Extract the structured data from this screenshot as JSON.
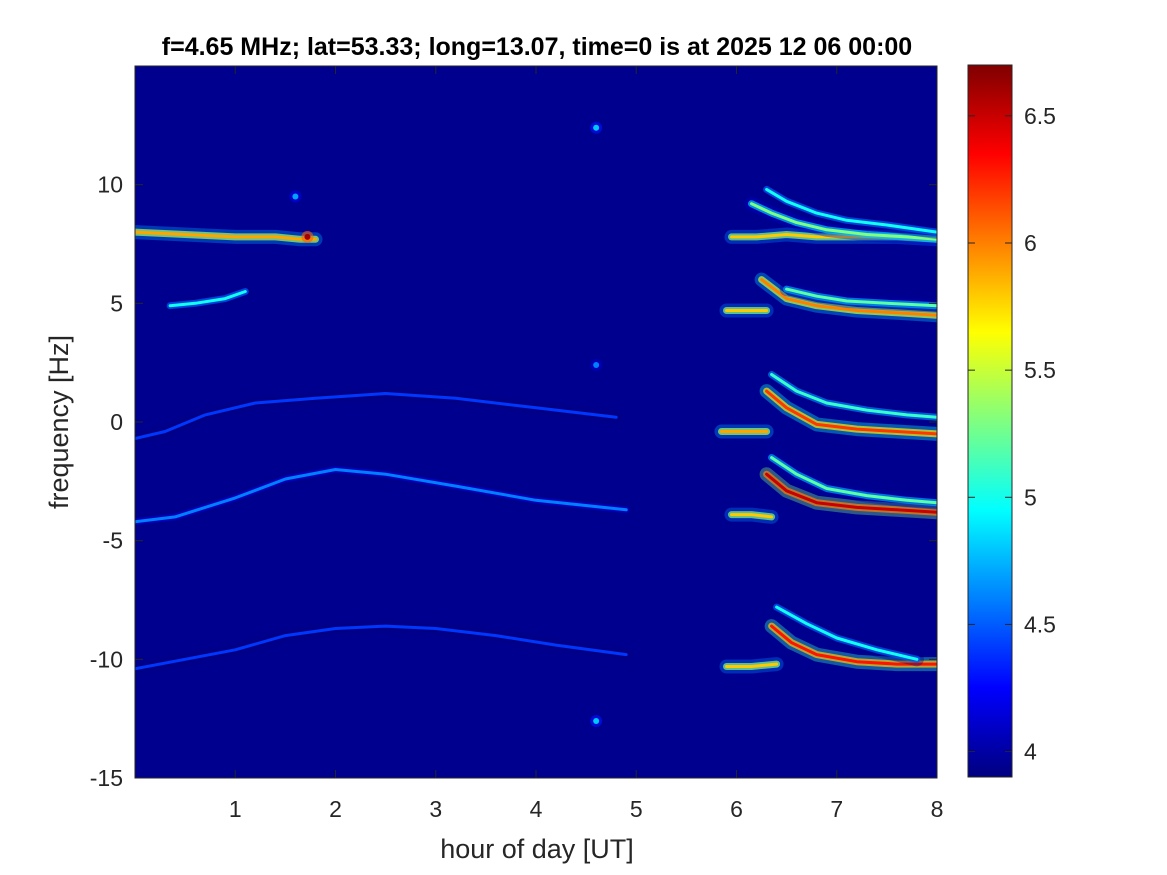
{
  "chart_data": {
    "type": "heatmap",
    "title": "f=4.65 MHz;  lat=53.33; long=13.07, time=0 is at 2025 12 06 00:00",
    "xlabel": "hour of day [UT]",
    "ylabel": "frequency [Hz]",
    "xlim": [
      0,
      8
    ],
    "ylim": [
      -15,
      15
    ],
    "x_ticks": [
      "1",
      "2",
      "3",
      "4",
      "5",
      "6",
      "7",
      "8"
    ],
    "y_ticks": [
      "-15",
      "-10",
      "-5",
      "0",
      "5",
      "10"
    ],
    "colormap": "jet",
    "colorbar": {
      "range": [
        3.9,
        6.7
      ],
      "ticks": [
        "4",
        "4.5",
        "5",
        "5.5",
        "6",
        "6.5"
      ]
    },
    "background_color": "#00008f",
    "traces": [
      {
        "x": [
          0.0,
          0.5,
          1.0,
          1.4,
          1.65,
          1.8
        ],
        "y": [
          8.0,
          7.9,
          7.8,
          7.8,
          7.7,
          7.7
        ],
        "level": 5.9
      },
      {
        "x": [
          0.35,
          0.6,
          0.9,
          1.1
        ],
        "y": [
          4.9,
          5.0,
          5.2,
          5.5
        ],
        "level": 5.0
      },
      {
        "x": [
          0.0,
          0.3,
          0.7,
          1.2,
          1.8,
          2.5,
          3.2,
          4.0,
          4.8
        ],
        "y": [
          -0.7,
          -0.4,
          0.3,
          0.8,
          1.0,
          1.2,
          1.0,
          0.6,
          0.2
        ],
        "level": 4.4
      },
      {
        "x": [
          0.0,
          0.4,
          1.0,
          1.5,
          2.0,
          2.5,
          3.2,
          4.0,
          4.9
        ],
        "y": [
          -4.2,
          -4.0,
          -3.2,
          -2.4,
          -2.0,
          -2.2,
          -2.7,
          -3.3,
          -3.7
        ],
        "level": 4.6
      },
      {
        "x": [
          0.0,
          0.5,
          1.0,
          1.5,
          2.0,
          2.5,
          3.0,
          3.6,
          4.2,
          4.9
        ],
        "y": [
          -10.4,
          -10.0,
          -9.6,
          -9.0,
          -8.7,
          -8.6,
          -8.7,
          -9.0,
          -9.4,
          -9.8
        ],
        "level": 4.4
      },
      {
        "x": [
          5.95,
          6.2,
          6.5,
          6.8,
          7.2,
          7.6,
          8.0
        ],
        "y": [
          7.8,
          7.8,
          7.9,
          7.8,
          7.8,
          7.8,
          7.7
        ],
        "level": 5.8
      },
      {
        "x": [
          6.15,
          6.35,
          6.6,
          6.9,
          7.3,
          7.7,
          8.0
        ],
        "y": [
          9.2,
          8.8,
          8.4,
          8.1,
          7.9,
          7.8,
          7.7
        ],
        "level": 5.3
      },
      {
        "x": [
          6.3,
          6.5,
          6.8,
          7.1,
          7.5,
          8.0
        ],
        "y": [
          9.8,
          9.3,
          8.8,
          8.5,
          8.3,
          8.0
        ],
        "level": 5.0
      },
      {
        "x": [
          5.9,
          6.1,
          6.3
        ],
        "y": [
          4.7,
          4.7,
          4.7
        ],
        "level": 5.8
      },
      {
        "x": [
          6.25,
          6.5,
          6.8,
          7.2,
          7.6,
          8.0
        ],
        "y": [
          6.0,
          5.2,
          4.9,
          4.7,
          4.6,
          4.5
        ],
        "level": 6.0
      },
      {
        "x": [
          6.5,
          6.8,
          7.1,
          7.5,
          8.0
        ],
        "y": [
          5.6,
          5.3,
          5.1,
          5.0,
          4.9
        ],
        "level": 5.2
      },
      {
        "x": [
          5.85,
          6.05,
          6.3
        ],
        "y": [
          -0.4,
          -0.4,
          -0.4
        ],
        "level": 5.9
      },
      {
        "x": [
          6.3,
          6.5,
          6.8,
          7.2,
          7.6,
          8.0
        ],
        "y": [
          1.3,
          0.6,
          -0.1,
          -0.3,
          -0.4,
          -0.5
        ],
        "level": 6.2
      },
      {
        "x": [
          6.35,
          6.6,
          6.9,
          7.3,
          7.7,
          8.0
        ],
        "y": [
          2.0,
          1.3,
          0.8,
          0.5,
          0.3,
          0.2
        ],
        "level": 5.1
      },
      {
        "x": [
          5.95,
          6.15,
          6.35
        ],
        "y": [
          -3.9,
          -3.9,
          -4.0
        ],
        "level": 5.8
      },
      {
        "x": [
          6.3,
          6.5,
          6.8,
          7.2,
          7.6,
          8.0
        ],
        "y": [
          -2.2,
          -2.9,
          -3.4,
          -3.6,
          -3.7,
          -3.8
        ],
        "level": 6.5
      },
      {
        "x": [
          6.35,
          6.6,
          6.9,
          7.3,
          7.7,
          8.0
        ],
        "y": [
          -1.5,
          -2.2,
          -2.8,
          -3.1,
          -3.3,
          -3.4
        ],
        "level": 5.2
      },
      {
        "x": [
          5.9,
          6.15,
          6.4
        ],
        "y": [
          -10.3,
          -10.3,
          -10.2
        ],
        "level": 5.8
      },
      {
        "x": [
          6.35,
          6.55,
          6.8,
          7.2,
          7.6,
          8.0
        ],
        "y": [
          -8.6,
          -9.3,
          -9.8,
          -10.1,
          -10.2,
          -10.2
        ],
        "level": 6.3
      },
      {
        "x": [
          6.4,
          6.7,
          7.0,
          7.4,
          7.8
        ],
        "y": [
          -7.8,
          -8.5,
          -9.1,
          -9.6,
          -10.0
        ],
        "level": 5.0
      }
    ],
    "spots": [
      {
        "x": 1.72,
        "y": 7.8,
        "level": 6.6
      },
      {
        "x": 4.6,
        "y": 12.4,
        "level": 4.8
      },
      {
        "x": 4.6,
        "y": 2.4,
        "level": 4.6
      },
      {
        "x": 4.6,
        "y": -12.6,
        "level": 4.8
      },
      {
        "x": 1.6,
        "y": 9.5,
        "level": 4.7
      }
    ]
  }
}
